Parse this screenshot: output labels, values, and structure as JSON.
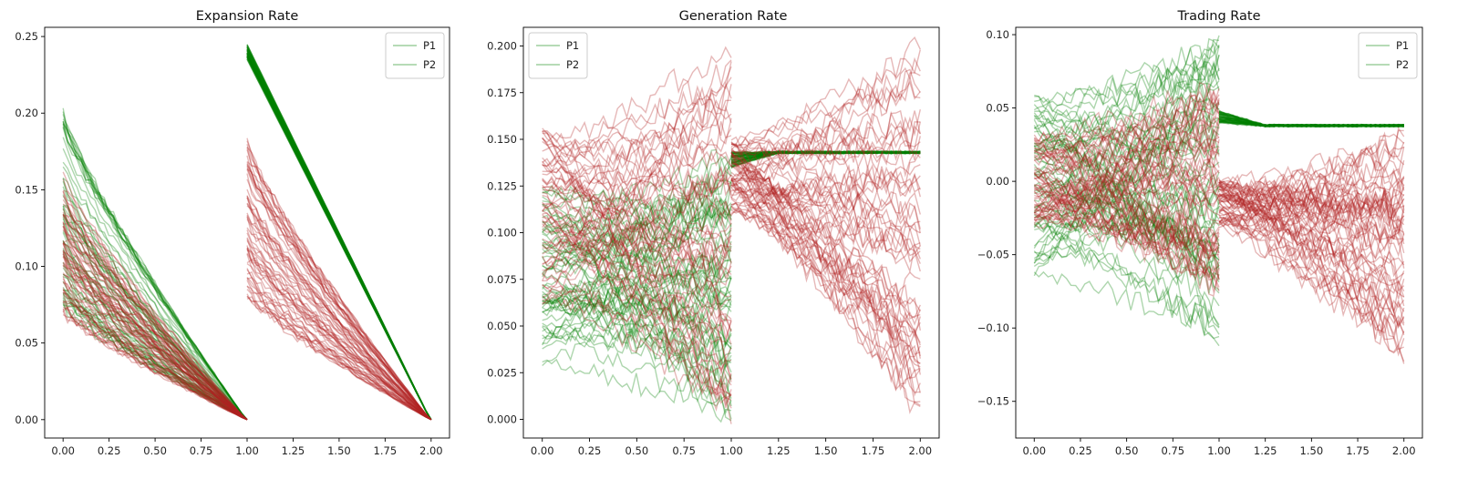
{
  "chart_data": [
    {
      "type": "line",
      "title": "Expansion Rate",
      "xlim": [
        -0.1,
        2.1
      ],
      "ylim": [
        -0.012,
        0.256
      ],
      "xticks": [
        0.0,
        0.25,
        0.5,
        0.75,
        1.0,
        1.25,
        1.5,
        1.75,
        2.0
      ],
      "xtick_labels": [
        "0.00",
        "0.25",
        "0.50",
        "0.75",
        "1.00",
        "1.25",
        "1.50",
        "1.75",
        "2.00"
      ],
      "yticks": [
        0.0,
        0.05,
        0.1,
        0.15,
        0.2,
        0.25
      ],
      "ytick_labels": [
        "0.00",
        "0.05",
        "0.10",
        "0.15",
        "0.20",
        "0.25"
      ],
      "legend": {
        "placement": "upper right",
        "entries": [
          "P1",
          "P2"
        ]
      },
      "series": [
        {
          "name": "P1",
          "color": "#008000",
          "segments": [
            {
              "x_range": [
                0,
                1
              ],
              "y_start_range": [
                0.06,
                0.2
              ],
              "y_end": 0.0,
              "shape": "decay"
            },
            {
              "x_range": [
                1,
                2
              ],
              "y_start_range": [
                0.235,
                0.245
              ],
              "y_end": 0.0,
              "shape": "linear"
            }
          ]
        },
        {
          "name": "P2",
          "color": "#b22222",
          "segments": [
            {
              "x_range": [
                0,
                1
              ],
              "y_start_range": [
                0.07,
                0.16
              ],
              "y_end": 0.0,
              "shape": "decay"
            },
            {
              "x_range": [
                1,
                2
              ],
              "y_start_range": [
                0.08,
                0.18
              ],
              "y_end": 0.0,
              "shape": "decay"
            }
          ]
        }
      ]
    },
    {
      "type": "line",
      "title": "Generation Rate",
      "xlim": [
        -0.1,
        2.1
      ],
      "ylim": [
        -0.01,
        0.21
      ],
      "xticks": [
        0.0,
        0.25,
        0.5,
        0.75,
        1.0,
        1.25,
        1.5,
        1.75,
        2.0
      ],
      "xtick_labels": [
        "0.00",
        "0.25",
        "0.50",
        "0.75",
        "1.00",
        "1.25",
        "1.50",
        "1.75",
        "2.00"
      ],
      "yticks": [
        0.0,
        0.025,
        0.05,
        0.075,
        0.1,
        0.125,
        0.15,
        0.175,
        0.2
      ],
      "ytick_labels": [
        "0.000",
        "0.025",
        "0.050",
        "0.075",
        "0.100",
        "0.125",
        "0.150",
        "0.175",
        "0.200"
      ],
      "legend": {
        "placement": "upper left",
        "entries": [
          "P1",
          "P2"
        ]
      },
      "series": [
        {
          "name": "P1",
          "color": "#008000",
          "segments": [
            {
              "x_range": [
                0,
                1
              ],
              "y_start_range": [
                0.03,
                0.125
              ],
              "y_end_range": [
                0.0,
                0.14
              ],
              "shape": "random_walk"
            },
            {
              "x_range": [
                1,
                2
              ],
              "y_start_range": [
                0.135,
                0.143
              ],
              "y_end": 0.143,
              "shape": "flat"
            }
          ]
        },
        {
          "name": "P2",
          "color": "#b22222",
          "segments": [
            {
              "x_range": [
                0,
                1
              ],
              "y_start_range": [
                0.06,
                0.155
              ],
              "y_end_range": [
                0.0,
                0.2
              ],
              "shape": "random_walk"
            },
            {
              "x_range": [
                1,
                2
              ],
              "y_start_range": [
                0.11,
                0.15
              ],
              "y_end_range": [
                0.0,
                0.2
              ],
              "shape": "random_walk"
            }
          ]
        }
      ]
    },
    {
      "type": "line",
      "title": "Trading Rate",
      "xlim": [
        -0.1,
        2.1
      ],
      "ylim": [
        -0.175,
        0.105
      ],
      "xticks": [
        0.0,
        0.25,
        0.5,
        0.75,
        1.0,
        1.25,
        1.5,
        1.75,
        2.0
      ],
      "xtick_labels": [
        "0.00",
        "0.25",
        "0.50",
        "0.75",
        "1.00",
        "1.25",
        "1.50",
        "1.75",
        "2.00"
      ],
      "yticks": [
        -0.15,
        -0.1,
        -0.05,
        0.0,
        0.05,
        0.1
      ],
      "ytick_labels": [
        "−0.15",
        "−0.10",
        "−0.05",
        "0.00",
        "0.05",
        "0.10"
      ],
      "legend": {
        "placement": "upper right",
        "entries": [
          "P1",
          "P2"
        ]
      },
      "series": [
        {
          "name": "P1",
          "color": "#008000",
          "segments": [
            {
              "x_range": [
                0,
                1
              ],
              "y_start_range": [
                -0.065,
                0.06
              ],
              "y_end_range": [
                -0.105,
                0.095
              ],
              "shape": "random_walk"
            },
            {
              "x_range": [
                1,
                2
              ],
              "y_start_range": [
                0.04,
                0.048
              ],
              "y_end": 0.038,
              "shape": "flat"
            }
          ]
        },
        {
          "name": "P2",
          "color": "#b22222",
          "segments": [
            {
              "x_range": [
                0,
                1
              ],
              "y_start_range": [
                -0.03,
                0.03
              ],
              "y_end_range": [
                -0.075,
                0.065
              ],
              "shape": "random_walk"
            },
            {
              "x_range": [
                1,
                2
              ],
              "y_start_range": [
                -0.03,
                0.005
              ],
              "y_end_range": [
                -0.115,
                0.03
              ],
              "shape": "random_walk"
            }
          ]
        }
      ]
    }
  ]
}
